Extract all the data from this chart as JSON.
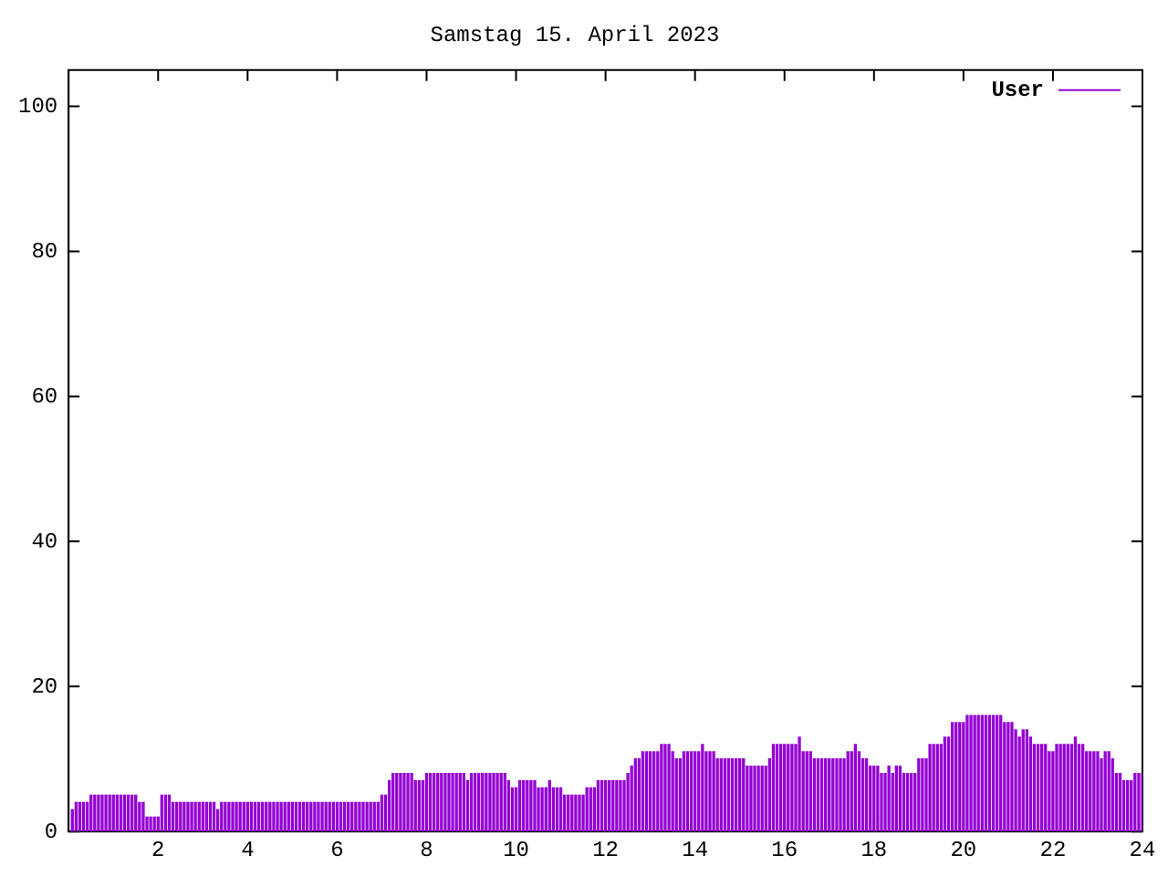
{
  "chart_data": {
    "type": "bar",
    "title": "Samstag 15. April 2023",
    "x": [
      0.083,
      0.167,
      0.25,
      0.333,
      0.417,
      0.5,
      0.583,
      0.667,
      0.75,
      0.833,
      0.917,
      1,
      1.083,
      1.167,
      1.25,
      1.333,
      1.417,
      1.5,
      1.583,
      1.667,
      1.75,
      1.833,
      1.917,
      2,
      2.083,
      2.167,
      2.25,
      2.333,
      2.417,
      2.5,
      2.583,
      2.667,
      2.75,
      2.833,
      2.917,
      3,
      3.083,
      3.167,
      3.25,
      3.333,
      3.417,
      3.5,
      3.583,
      3.667,
      3.75,
      3.833,
      3.917,
      4,
      4.083,
      4.167,
      4.25,
      4.333,
      4.417,
      4.5,
      4.583,
      4.667,
      4.75,
      4.833,
      4.917,
      5,
      5.083,
      5.167,
      5.25,
      5.333,
      5.417,
      5.5,
      5.583,
      5.667,
      5.75,
      5.833,
      5.917,
      6,
      6.083,
      6.167,
      6.25,
      6.333,
      6.417,
      6.5,
      6.583,
      6.667,
      6.75,
      6.833,
      6.917,
      7,
      7.083,
      7.167,
      7.25,
      7.333,
      7.417,
      7.5,
      7.583,
      7.667,
      7.75,
      7.833,
      7.917,
      8,
      8.083,
      8.167,
      8.25,
      8.333,
      8.417,
      8.5,
      8.583,
      8.667,
      8.75,
      8.833,
      8.917,
      9,
      9.083,
      9.167,
      9.25,
      9.333,
      9.417,
      9.5,
      9.583,
      9.667,
      9.75,
      9.833,
      9.917,
      10,
      10.083,
      10.167,
      10.25,
      10.333,
      10.417,
      10.5,
      10.583,
      10.667,
      10.75,
      10.833,
      10.917,
      11,
      11.083,
      11.167,
      11.25,
      11.333,
      11.417,
      11.5,
      11.583,
      11.667,
      11.75,
      11.833,
      11.917,
      12,
      12.083,
      12.167,
      12.25,
      12.333,
      12.417,
      12.5,
      12.583,
      12.667,
      12.75,
      12.833,
      12.917,
      13,
      13.083,
      13.167,
      13.25,
      13.333,
      13.417,
      13.5,
      13.583,
      13.667,
      13.75,
      13.833,
      13.917,
      14,
      14.083,
      14.167,
      14.25,
      14.333,
      14.417,
      14.5,
      14.583,
      14.667,
      14.75,
      14.833,
      14.917,
      15,
      15.083,
      15.167,
      15.25,
      15.333,
      15.417,
      15.5,
      15.583,
      15.667,
      15.75,
      15.833,
      15.917,
      16,
      16.083,
      16.167,
      16.25,
      16.333,
      16.417,
      16.5,
      16.583,
      16.667,
      16.75,
      16.833,
      16.917,
      17,
      17.083,
      17.167,
      17.25,
      17.333,
      17.417,
      17.5,
      17.583,
      17.667,
      17.75,
      17.833,
      17.917,
      18,
      18.083,
      18.167,
      18.25,
      18.333,
      18.417,
      18.5,
      18.583,
      18.667,
      18.75,
      18.833,
      18.917,
      19,
      19.083,
      19.167,
      19.25,
      19.333,
      19.417,
      19.5,
      19.583,
      19.667,
      19.75,
      19.833,
      19.917,
      20,
      20.083,
      20.167,
      20.25,
      20.333,
      20.417,
      20.5,
      20.583,
      20.667,
      20.75,
      20.833,
      20.917,
      21,
      21.083,
      21.167,
      21.25,
      21.333,
      21.417,
      21.5,
      21.583,
      21.667,
      21.75,
      21.833,
      21.917,
      22,
      22.083,
      22.167,
      22.25,
      22.333,
      22.417,
      22.5,
      22.583,
      22.667,
      22.75,
      22.833,
      22.917,
      23,
      23.083,
      23.167,
      23.25,
      23.333,
      23.417,
      23.5,
      23.583,
      23.667,
      23.75,
      23.833,
      23.917,
      24
    ],
    "series": [
      {
        "name": "User",
        "color": "#9400d3",
        "values": [
          3,
          4,
          4,
          4,
          4,
          5,
          5,
          5,
          5,
          5,
          5,
          5,
          5,
          5,
          5,
          5,
          5,
          5,
          4,
          4,
          2,
          2,
          2,
          2,
          5,
          5,
          5,
          4,
          4,
          4,
          4,
          4,
          4,
          4,
          4,
          4,
          4,
          4,
          4,
          3,
          4,
          4,
          4,
          4,
          4,
          4,
          4,
          4,
          4,
          4,
          4,
          4,
          4,
          4,
          4,
          4,
          4,
          4,
          4,
          4,
          4,
          4,
          4,
          4,
          4,
          4,
          4,
          4,
          4,
          4,
          4,
          4,
          4,
          4,
          4,
          4,
          4,
          4,
          4,
          4,
          4,
          4,
          4,
          5,
          5,
          7,
          8,
          8,
          8,
          8,
          8,
          8,
          7,
          7,
          7,
          8,
          8,
          8,
          8,
          8,
          8,
          8,
          8,
          8,
          8,
          8,
          7,
          8,
          8,
          8,
          8,
          8,
          8,
          8,
          8,
          8,
          8,
          7,
          6,
          6,
          7,
          7,
          7,
          7,
          7,
          6,
          6,
          6,
          7,
          6,
          6,
          6,
          5,
          5,
          5,
          5,
          5,
          5,
          6,
          6,
          6,
          7,
          7,
          7,
          7,
          7,
          7,
          7,
          7,
          8,
          9,
          10,
          10,
          11,
          11,
          11,
          11,
          11,
          12,
          12,
          12,
          11,
          10,
          10,
          11,
          11,
          11,
          11,
          11,
          12,
          11,
          11,
          11,
          10,
          10,
          10,
          10,
          10,
          10,
          10,
          10,
          9,
          9,
          9,
          9,
          9,
          9,
          10,
          12,
          12,
          12,
          12,
          12,
          12,
          12,
          13,
          11,
          11,
          11,
          10,
          10,
          10,
          10,
          10,
          10,
          10,
          10,
          10,
          11,
          11,
          12,
          11,
          10,
          10,
          9,
          9,
          9,
          8,
          8,
          9,
          8,
          9,
          9,
          8,
          8,
          8,
          8,
          10,
          10,
          10,
          12,
          12,
          12,
          12,
          13,
          13,
          15,
          15,
          15,
          15,
          16,
          16,
          16,
          16,
          16,
          16,
          16,
          16,
          16,
          16,
          15,
          15,
          15,
          14,
          13,
          14,
          14,
          13,
          12,
          12,
          12,
          12,
          11,
          11,
          12,
          12,
          12,
          12,
          12,
          13,
          12,
          12,
          11,
          11,
          11,
          11,
          10,
          11,
          11,
          10,
          8,
          8,
          7,
          7,
          7,
          8,
          8,
          8
        ]
      }
    ],
    "xlim": [
      0,
      24
    ],
    "xticks": [
      2,
      4,
      6,
      8,
      10,
      12,
      14,
      16,
      18,
      20,
      22,
      24
    ],
    "ylim": [
      0,
      105
    ],
    "yticks": [
      0,
      20,
      40,
      60,
      80,
      100
    ],
    "grid": false,
    "legend": "top right"
  }
}
